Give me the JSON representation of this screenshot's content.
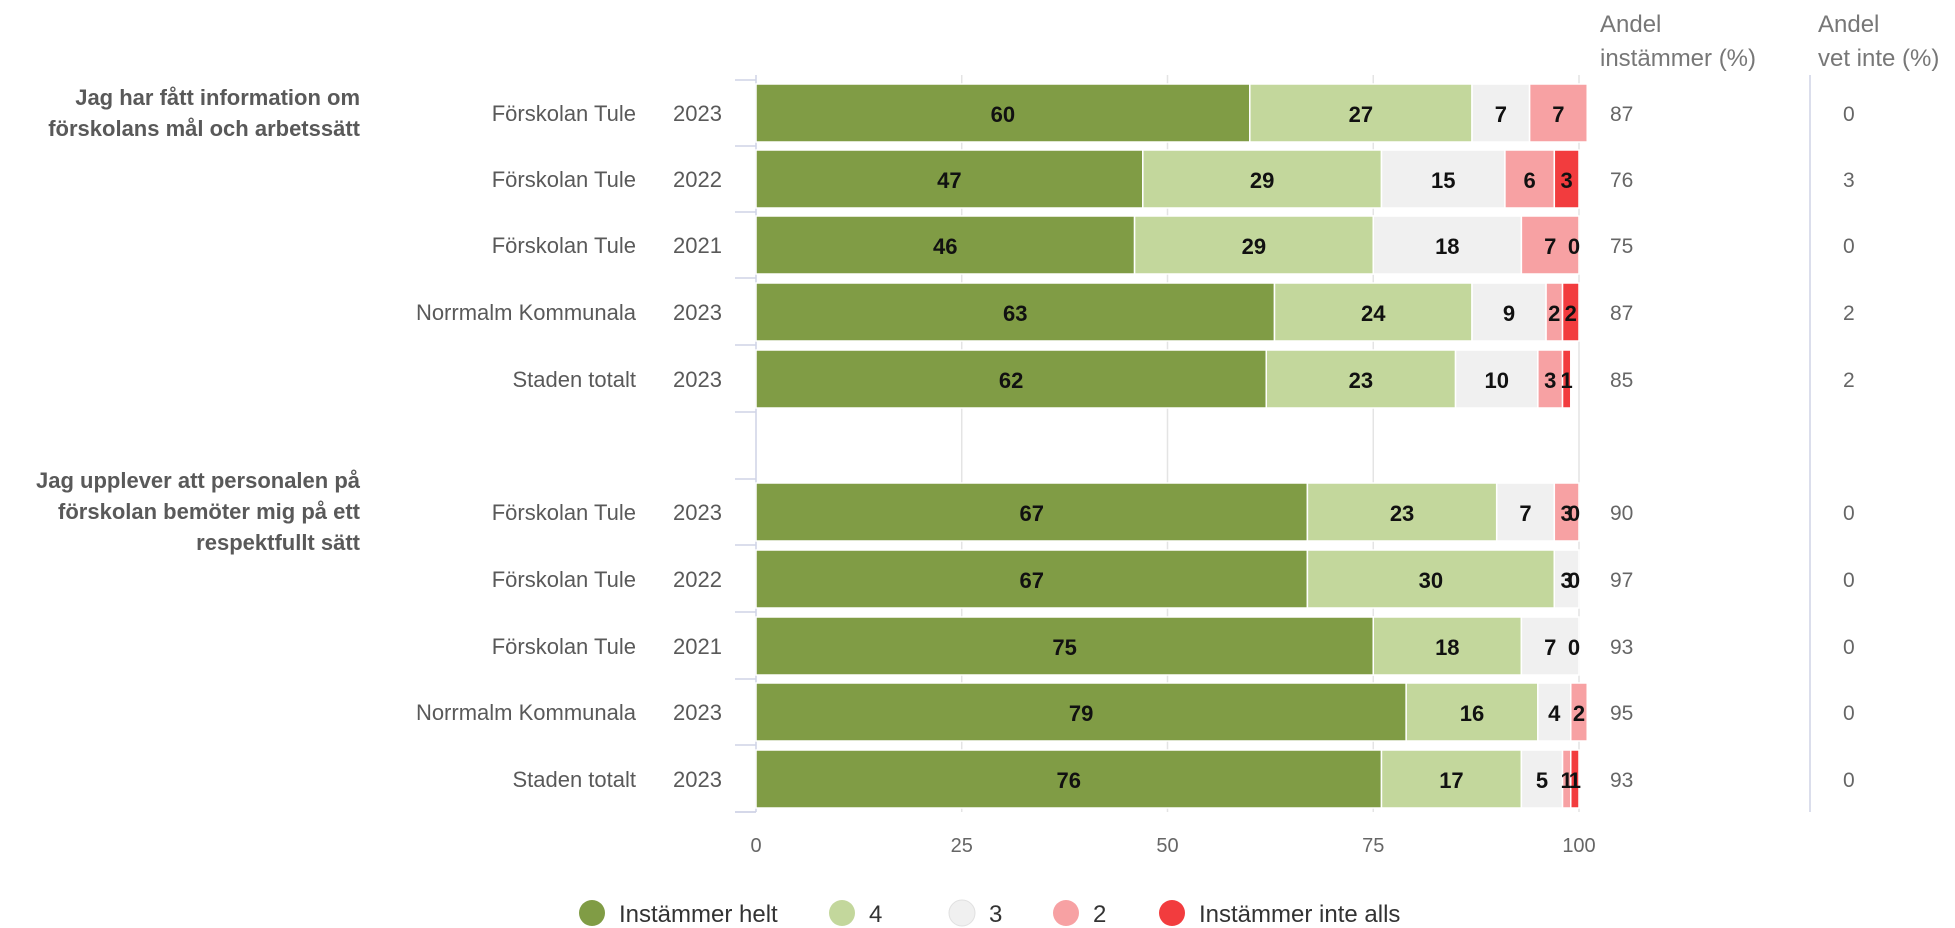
{
  "chart_data": {
    "type": "bar",
    "orientation": "horizontal",
    "stacked": true,
    "xlim": [
      0,
      100
    ],
    "xticks": [
      "0",
      "25",
      "50",
      "75",
      "100"
    ],
    "grid": true,
    "legend_position": "bottom",
    "side_columns": [
      {
        "line1": "Andel",
        "line2": "instämmer (%)"
      },
      {
        "line1": "Andel",
        "line2": "vet inte (%)"
      }
    ],
    "legend": [
      {
        "name": "Instämmer helt",
        "color": "#809c45"
      },
      {
        "name": "4",
        "color": "#c3d79c"
      },
      {
        "name": "3",
        "color": "#f0f0f0"
      },
      {
        "name": "2",
        "color": "#f7a1a3"
      },
      {
        "name": "Instämmer inte alls",
        "color": "#f23c3e"
      }
    ],
    "groups": [
      {
        "title_lines": [
          "Jag har fått information om",
          "förskolans mål och arbetssätt"
        ],
        "rows": [
          {
            "label": "Förskolan Tule",
            "year": "2023",
            "values": [
              60,
              27,
              7,
              7,
              0
            ],
            "instammer": "87",
            "vet_inte": "0"
          },
          {
            "label": "Förskolan Tule",
            "year": "2022",
            "values": [
              47,
              29,
              15,
              6,
              3
            ],
            "instammer": "76",
            "vet_inte": "3"
          },
          {
            "label": "Förskolan Tule",
            "year": "2021",
            "values": [
              46,
              29,
              18,
              7,
              0
            ],
            "instammer": "75",
            "vet_inte": "0"
          },
          {
            "label": "Norrmalm Kommunala",
            "year": "2023",
            "values": [
              63,
              24,
              9,
              2,
              2
            ],
            "instammer": "87",
            "vet_inte": "2"
          },
          {
            "label": "Staden totalt",
            "year": "2023",
            "values": [
              62,
              23,
              10,
              3,
              1
            ],
            "instammer": "85",
            "vet_inte": "2"
          }
        ]
      },
      {
        "title_lines": [
          "Jag upplever att personalen på",
          "förskolan bemöter mig på ett",
          "respektfullt sätt"
        ],
        "rows": [
          {
            "label": "Förskolan Tule",
            "year": "2023",
            "values": [
              67,
              23,
              7,
              3,
              0
            ],
            "instammer": "90",
            "vet_inte": "0"
          },
          {
            "label": "Förskolan Tule",
            "year": "2022",
            "values": [
              67,
              30,
              3,
              0,
              0
            ],
            "instammer": "97",
            "vet_inte": "0"
          },
          {
            "label": "Förskolan Tule",
            "year": "2021",
            "values": [
              75,
              18,
              7,
              0,
              0
            ],
            "instammer": "93",
            "vet_inte": "0"
          },
          {
            "label": "Norrmalm Kommunala",
            "year": "2023",
            "values": [
              79,
              16,
              4,
              2,
              0
            ],
            "instammer": "95",
            "vet_inte": "0"
          },
          {
            "label": "Staden totalt",
            "year": "2023",
            "values": [
              76,
              17,
              5,
              1,
              1
            ],
            "instammer": "93",
            "vet_inte": "0"
          }
        ]
      }
    ]
  }
}
